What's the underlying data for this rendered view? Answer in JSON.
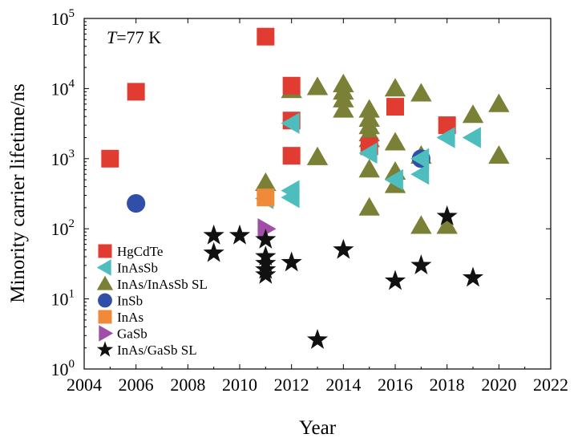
{
  "chart_data": {
    "type": "scatter",
    "xlabel": "Year",
    "ylabel": "Minority carrier lifetime/ns",
    "annotation": "T=77 K",
    "annotation_parts": {
      "italic": "T",
      "rest": "=77 K"
    },
    "xlim": [
      2004,
      2022
    ],
    "ylim": [
      1,
      100000
    ],
    "y_scale": "log",
    "x_ticks": [
      2004,
      2006,
      2008,
      2010,
      2012,
      2014,
      2016,
      2018,
      2020,
      2022
    ],
    "x_tick_labels": [
      "2004",
      "2006",
      "2008",
      "2010",
      "2012",
      "2014",
      "2016",
      "2018",
      "2020",
      "2022"
    ],
    "y_ticks": [
      1,
      10,
      100,
      1000,
      10000,
      100000
    ],
    "y_tick_labels": [
      {
        "base": "10",
        "exp": "0"
      },
      {
        "base": "10",
        "exp": "1"
      },
      {
        "base": "10",
        "exp": "2"
      },
      {
        "base": "10",
        "exp": "3"
      },
      {
        "base": "10",
        "exp": "4"
      },
      {
        "base": "10",
        "exp": "5"
      }
    ],
    "grid": false,
    "legend_placement": "bottom-left",
    "series": [
      {
        "name": "HgCdTe",
        "marker": "square",
        "color": "#e03c31",
        "points": [
          {
            "x": 2005,
            "y": 1000
          },
          {
            "x": 2006,
            "y": 9000
          },
          {
            "x": 2011,
            "y": 55000
          },
          {
            "x": 2012,
            "y": 11000
          },
          {
            "x": 2012,
            "y": 3500
          },
          {
            "x": 2012,
            "y": 1100
          },
          {
            "x": 2016,
            "y": 5500
          },
          {
            "x": 2018,
            "y": 3000
          },
          {
            "x": 2015,
            "y": 1500
          }
        ]
      },
      {
        "name": "InAsSb",
        "marker": "triangle-left",
        "color": "#4dbdbd",
        "points": [
          {
            "x": 2011,
            "y": 270
          },
          {
            "x": 2012,
            "y": 3200
          },
          {
            "x": 2012,
            "y": 350
          },
          {
            "x": 2012,
            "y": 280
          },
          {
            "x": 2015,
            "y": 1200
          },
          {
            "x": 2017,
            "y": 1000
          },
          {
            "x": 2017,
            "y": 600
          },
          {
            "x": 2018,
            "y": 2000
          },
          {
            "x": 2019,
            "y": 2000
          },
          {
            "x": 2016,
            "y": 500
          }
        ]
      },
      {
        "name": "InAs/InAsSb SL",
        "marker": "triangle-up",
        "color": "#7a8035",
        "points": [
          {
            "x": 2011,
            "y": 450
          },
          {
            "x": 2012,
            "y": 9500
          },
          {
            "x": 2013,
            "y": 10500
          },
          {
            "x": 2013,
            "y": 1050
          },
          {
            "x": 2014,
            "y": 11500
          },
          {
            "x": 2014,
            "y": 9000
          },
          {
            "x": 2014,
            "y": 7000
          },
          {
            "x": 2014,
            "y": 5000
          },
          {
            "x": 2015,
            "y": 5000
          },
          {
            "x": 2015,
            "y": 3700
          },
          {
            "x": 2015,
            "y": 2900
          },
          {
            "x": 2015,
            "y": 2300
          },
          {
            "x": 2015,
            "y": 1900
          },
          {
            "x": 2015,
            "y": 700
          },
          {
            "x": 2015,
            "y": 200
          },
          {
            "x": 2016,
            "y": 10000
          },
          {
            "x": 2016,
            "y": 1700
          },
          {
            "x": 2016,
            "y": 650
          },
          {
            "x": 2016,
            "y": 420
          },
          {
            "x": 2017,
            "y": 8500
          },
          {
            "x": 2017,
            "y": 1100
          },
          {
            "x": 2017,
            "y": 110
          },
          {
            "x": 2018,
            "y": 110
          },
          {
            "x": 2019,
            "y": 4200
          },
          {
            "x": 2020,
            "y": 6000
          },
          {
            "x": 2020,
            "y": 1100
          }
        ]
      },
      {
        "name": "InSb",
        "marker": "circle",
        "color": "#2f4fa8",
        "points": [
          {
            "x": 2006,
            "y": 230
          },
          {
            "x": 2017,
            "y": 1000
          }
        ]
      },
      {
        "name": "InAs",
        "marker": "square",
        "color": "#ef8a3a",
        "points": [
          {
            "x": 2011,
            "y": 280
          }
        ]
      },
      {
        "name": "GaSb",
        "marker": "triangle-right",
        "color": "#a04ea8",
        "points": [
          {
            "x": 2011,
            "y": 100
          }
        ]
      },
      {
        "name": "InAs/GaSb SL",
        "marker": "star",
        "color": "#111111",
        "points": [
          {
            "x": 2009,
            "y": 80
          },
          {
            "x": 2009,
            "y": 45
          },
          {
            "x": 2010,
            "y": 80
          },
          {
            "x": 2011,
            "y": 70
          },
          {
            "x": 2011,
            "y": 40
          },
          {
            "x": 2011,
            "y": 32
          },
          {
            "x": 2011,
            "y": 26
          },
          {
            "x": 2011,
            "y": 22
          },
          {
            "x": 2012,
            "y": 33
          },
          {
            "x": 2013,
            "y": 2.6
          },
          {
            "x": 2014,
            "y": 50
          },
          {
            "x": 2016,
            "y": 18
          },
          {
            "x": 2017,
            "y": 30
          },
          {
            "x": 2018,
            "y": 150
          },
          {
            "x": 2019,
            "y": 20
          }
        ]
      }
    ]
  }
}
